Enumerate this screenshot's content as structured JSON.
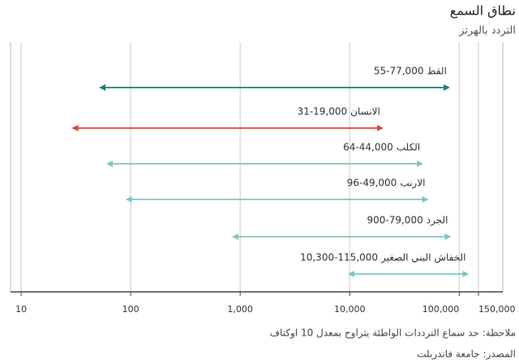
{
  "chart_data": {
    "type": "range",
    "title": "نطاق السمع",
    "subtitle": "التردد بالهرتز",
    "note": "ملاحظة: حد سماع الترددات الواطئة يتراوح بمعدل 10 اوكتاف",
    "source": "المصدر: جامعة فاندربلت",
    "log_scale": true,
    "grid": true,
    "xlim": [
      8,
      250000
    ],
    "xticks": [
      10,
      100,
      {
        "value": 1000,
        "label": "1,000"
      },
      {
        "value": 10000,
        "label": "10,000"
      },
      {
        "value": 100000,
        "label": "100,000"
      },
      {
        "value": 150000,
        "label": "150,000"
      }
    ],
    "series": [
      {
        "name": "القط",
        "color": "#1a7f72",
        "low": 55,
        "high": 77000,
        "label": "55-77,000"
      },
      {
        "name": "الانسان",
        "color": "#e0413f",
        "low": 31,
        "high": 19000,
        "label": "31-19,000"
      },
      {
        "name": "الكلب",
        "color": "#7fc4c4",
        "low": 64,
        "high": 44000,
        "label": "64-44,000"
      },
      {
        "name": "الارنب",
        "color": "#7fc4c4",
        "low": 96,
        "high": 49000,
        "label": "96-49,000"
      },
      {
        "name": "الجرذ",
        "color": "#7fc4c4",
        "low": 900,
        "high": 79000,
        "label": "900-79,000"
      },
      {
        "name": "الخفاش البني الصغير",
        "color": "#7fc4c4",
        "low": 10300,
        "high": 115000,
        "label": "10,300-115,000"
      }
    ]
  }
}
